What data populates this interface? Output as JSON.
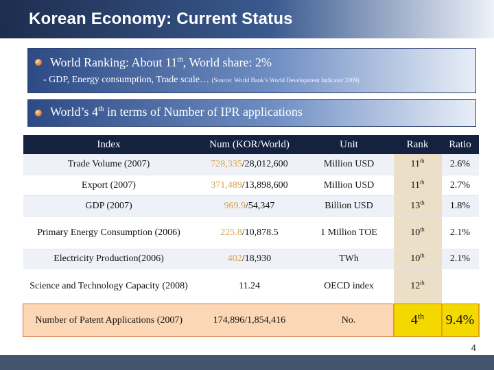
{
  "slide": {
    "title": "Korean Economy: Current Status",
    "page_number": "4"
  },
  "bullets": [
    {
      "main_before": "World Ranking: About 11",
      "main_sup": "th",
      "main_after": ", World share: 2%",
      "sub_text": "- GDP, Energy consumption, Trade scale… ",
      "source": "(Source: World Bank’s World Development Indicator 2009)"
    },
    {
      "main_before": "World’s 4",
      "main_sup": "th",
      "main_after": " in terms of Number of IPR applications"
    }
  ],
  "table": {
    "headers": [
      "Index",
      "Num (KOR/World)",
      "Unit",
      "Rank",
      "Ratio"
    ],
    "rows": [
      {
        "index": "Trade Volume (2007)",
        "kor": "728,335",
        "world": "/28,012,600",
        "unit": "Million USD",
        "rank_num": "11",
        "rank_sup": "th",
        "ratio": "2.6%"
      },
      {
        "index": "Export (2007)",
        "kor": "371,489",
        "world": "/13,898,600",
        "unit": "Million USD",
        "rank_num": "11",
        "rank_sup": "th",
        "ratio": "2.7%"
      },
      {
        "index": "GDP (2007)",
        "kor": "969.9",
        "world": "/54,347",
        "unit": "Billion USD",
        "rank_num": "13",
        "rank_sup": "th",
        "ratio": "1.8%"
      },
      {
        "index": "Primary Energy Consumption (2006)",
        "kor": "225.8",
        "world": "/10,878.5",
        "unit": "1 Million TOE",
        "rank_num": "10",
        "rank_sup": "th",
        "ratio": "2.1%"
      },
      {
        "index": "Electricity Production(2006)",
        "kor": "402",
        "world": "/18,930",
        "unit": "TWh",
        "rank_num": "10",
        "rank_sup": "th",
        "ratio": "2.1%"
      },
      {
        "index": "Science and Technology Capacity (2008)",
        "kor": "",
        "world": "11.24",
        "unit": "OECD index",
        "rank_num": "12",
        "rank_sup": "th",
        "ratio": ""
      },
      {
        "index": "Number of Patent Applications (2007)",
        "kor": "",
        "world": "174,896/1,854,416",
        "unit": "No.",
        "rank_num": "4",
        "rank_sup": "th",
        "ratio": "9.4%"
      }
    ]
  },
  "colors": {
    "header_bar": "#1d2d4e",
    "table_header": "#14223f",
    "highlight_number": "#d9a24a",
    "patent_row": "#fbd7b6",
    "patent_highlight": "#f4d900"
  },
  "icons": [
    "orange-bullet-icon"
  ]
}
